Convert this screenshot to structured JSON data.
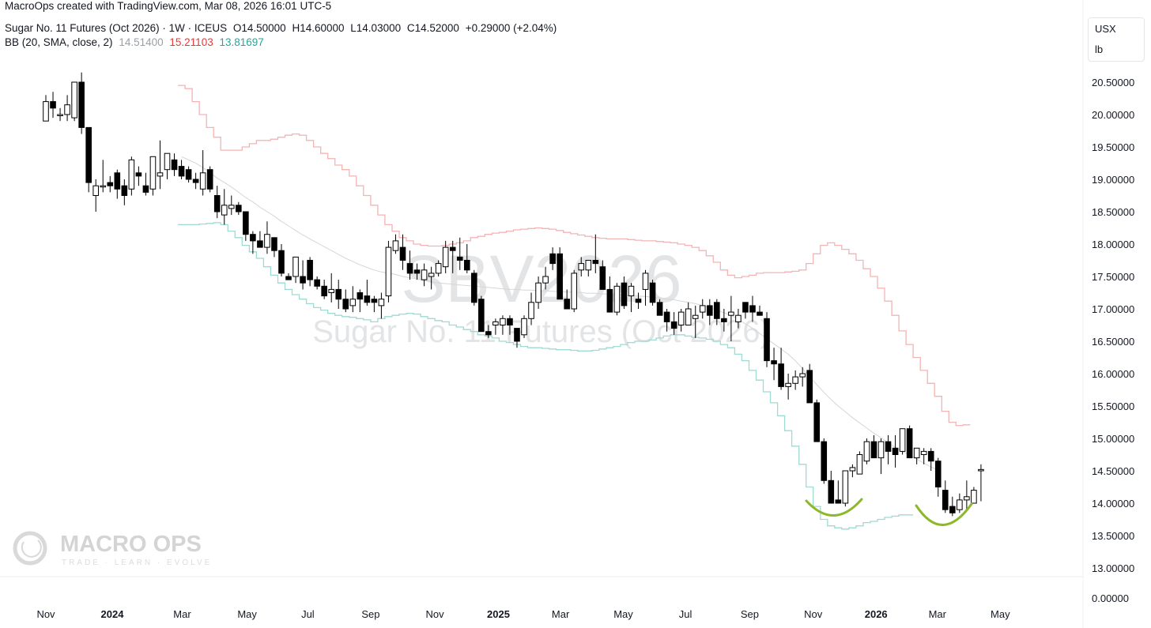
{
  "header": {
    "created_by": "MacroOps created with TradingView.com, Mar 08, 2026 16:01 UTC-5",
    "symbol_title": "Sugar No. 11 Futures (Oct 2026) · 1W · ICEUS",
    "ohlc": {
      "open": "O14.50000",
      "high": "H14.60000",
      "low": "L14.03000",
      "close": "C14.52000",
      "change": "+0.29000 (+2.04%)"
    },
    "bb_label": "BB (20, SMA, close, 2)",
    "bb_values": {
      "basis": "14.51400",
      "upper": "15.21103",
      "lower": "13.81697"
    }
  },
  "unit_box": {
    "currency": "USX",
    "unit": "lb"
  },
  "watermark": {
    "symbol": "SBV2026",
    "description": "Sugar No. 11 Futures (Oct 2026)"
  },
  "logo": {
    "name": "MACRO OPS",
    "tagline": "TRADE · LEARN · EVOLVE"
  },
  "colors": {
    "up_fill": "#ffffff",
    "down_fill": "#000000",
    "bb_upper": "#f4b4b4",
    "bb_basis": "#d6d6d6",
    "bb_lower": "#9fdad4",
    "pattern": "#8cb829",
    "text": "#131722"
  },
  "chart_data": {
    "type": "candlestick",
    "timeframe": "1W",
    "y_axis": {
      "labels": [
        "20.50000",
        "20.00000",
        "19.50000",
        "19.00000",
        "18.50000",
        "18.00000",
        "17.50000",
        "17.00000",
        "16.50000",
        "16.00000",
        "15.50000",
        "15.00000",
        "14.50000",
        "14.00000",
        "13.50000",
        "13.00000"
      ],
      "ylim": [
        13.0,
        20.5
      ],
      "volume_label": "0.00000"
    },
    "x_axis": {
      "ticks": [
        {
          "label": "Nov",
          "bold": false,
          "week": 0
        },
        {
          "label": "2024",
          "bold": true,
          "week": 9.3
        },
        {
          "label": "Mar",
          "bold": false,
          "week": 19.1
        },
        {
          "label": "May",
          "bold": false,
          "week": 28.2
        },
        {
          "label": "Jul",
          "bold": false,
          "week": 36.7
        },
        {
          "label": "Sep",
          "bold": false,
          "week": 45.5
        },
        {
          "label": "Nov",
          "bold": false,
          "week": 54.5
        },
        {
          "label": "2025",
          "bold": true,
          "week": 63.4
        },
        {
          "label": "Mar",
          "bold": false,
          "week": 72.1
        },
        {
          "label": "May",
          "bold": false,
          "week": 80.9
        },
        {
          "label": "Jul",
          "bold": false,
          "week": 89.6
        },
        {
          "label": "Sep",
          "bold": false,
          "week": 98.6
        },
        {
          "label": "Nov",
          "bold": false,
          "week": 107.5
        },
        {
          "label": "2026",
          "bold": true,
          "week": 116.3
        },
        {
          "label": "Mar",
          "bold": false,
          "week": 124.9
        },
        {
          "label": "May",
          "bold": false,
          "week": 133.7
        }
      ]
    },
    "ohlc": [
      [
        19.9,
        20.3,
        19.9,
        20.2
      ],
      [
        20.2,
        20.35,
        19.95,
        20.1
      ],
      [
        20.0,
        20.1,
        19.9,
        20.0
      ],
      [
        20.0,
        20.3,
        19.9,
        20.15
      ],
      [
        19.95,
        20.5,
        19.9,
        20.5
      ],
      [
        20.5,
        20.65,
        19.7,
        19.8
      ],
      [
        19.8,
        19.8,
        18.8,
        18.95
      ],
      [
        18.75,
        19.0,
        18.5,
        18.9
      ],
      [
        18.9,
        19.3,
        18.8,
        18.9
      ],
      [
        18.95,
        19.05,
        18.8,
        18.9
      ],
      [
        19.1,
        19.15,
        18.7,
        18.85
      ],
      [
        18.9,
        19.0,
        18.6,
        18.75
      ],
      [
        18.85,
        19.35,
        18.75,
        19.3
      ],
      [
        19.1,
        19.2,
        18.9,
        19.05
      ],
      [
        18.9,
        19.1,
        18.75,
        18.8
      ],
      [
        18.85,
        19.35,
        18.75,
        19.35
      ],
      [
        19.05,
        19.6,
        18.85,
        19.1
      ],
      [
        19.15,
        19.4,
        19.0,
        19.4
      ],
      [
        19.3,
        19.4,
        19.05,
        19.15
      ],
      [
        19.2,
        19.3,
        19.0,
        19.05
      ],
      [
        19.15,
        19.2,
        18.95,
        19.0
      ],
      [
        19.0,
        19.1,
        18.85,
        18.95
      ],
      [
        18.85,
        19.45,
        18.75,
        19.1
      ],
      [
        19.15,
        19.2,
        18.8,
        18.85
      ],
      [
        18.75,
        18.9,
        18.4,
        18.5
      ],
      [
        18.45,
        18.85,
        18.3,
        18.6
      ],
      [
        18.55,
        18.75,
        18.45,
        18.6
      ],
      [
        18.6,
        18.65,
        18.45,
        18.5
      ],
      [
        18.5,
        18.5,
        18.05,
        18.15
      ],
      [
        18.15,
        18.2,
        17.85,
        18.05
      ],
      [
        18.05,
        18.2,
        17.95,
        17.95
      ],
      [
        17.95,
        18.35,
        17.85,
        18.15
      ],
      [
        18.1,
        18.1,
        17.8,
        17.9
      ],
      [
        17.9,
        18.0,
        17.5,
        17.55
      ],
      [
        17.5,
        17.55,
        17.45,
        17.45
      ],
      [
        17.5,
        17.8,
        17.4,
        17.8
      ],
      [
        17.5,
        17.75,
        17.3,
        17.4
      ],
      [
        17.75,
        17.8,
        17.35,
        17.45
      ],
      [
        17.45,
        17.5,
        17.3,
        17.35
      ],
      [
        17.35,
        17.45,
        17.15,
        17.2
      ],
      [
        17.25,
        17.55,
        17.1,
        17.3
      ],
      [
        17.3,
        17.45,
        17.0,
        17.15
      ],
      [
        17.15,
        17.3,
        16.95,
        17.0
      ],
      [
        17.05,
        17.35,
        16.95,
        17.15
      ],
      [
        17.25,
        17.3,
        16.95,
        17.15
      ],
      [
        17.2,
        17.45,
        17.05,
        17.1
      ],
      [
        17.15,
        17.2,
        16.95,
        17.1
      ],
      [
        17.05,
        17.25,
        16.85,
        17.15
      ],
      [
        17.2,
        18.05,
        17.1,
        17.95
      ],
      [
        17.9,
        18.15,
        17.85,
        18.05
      ],
      [
        17.95,
        18.15,
        17.6,
        17.75
      ],
      [
        17.7,
        17.9,
        17.45,
        17.55
      ],
      [
        17.6,
        17.7,
        17.45,
        17.55
      ],
      [
        17.45,
        17.7,
        17.35,
        17.6
      ],
      [
        17.5,
        17.65,
        17.3,
        17.55
      ],
      [
        17.55,
        17.75,
        17.5,
        17.7
      ],
      [
        17.65,
        18.05,
        17.55,
        17.95
      ],
      [
        17.95,
        18.05,
        17.55,
        17.9
      ],
      [
        17.8,
        18.1,
        17.6,
        17.75
      ],
      [
        17.75,
        18.0,
        17.55,
        17.6
      ],
      [
        17.55,
        17.6,
        17.05,
        17.1
      ],
      [
        17.15,
        17.2,
        16.65,
        16.65
      ],
      [
        16.65,
        16.75,
        16.55,
        16.6
      ],
      [
        16.75,
        16.85,
        16.6,
        16.8
      ],
      [
        16.75,
        16.9,
        16.6,
        16.85
      ],
      [
        16.85,
        16.9,
        16.6,
        16.75
      ],
      [
        16.7,
        16.7,
        16.4,
        16.5
      ],
      [
        16.6,
        16.9,
        16.55,
        16.85
      ],
      [
        16.85,
        17.25,
        16.75,
        17.1
      ],
      [
        17.1,
        17.5,
        17.0,
        17.4
      ],
      [
        17.4,
        17.65,
        17.3,
        17.5
      ],
      [
        17.85,
        17.95,
        17.6,
        17.7
      ],
      [
        17.85,
        17.95,
        17.15,
        17.15
      ],
      [
        17.15,
        17.3,
        17.0,
        17.0
      ],
      [
        17.0,
        17.6,
        16.95,
        17.55
      ],
      [
        17.6,
        17.8,
        17.5,
        17.7
      ],
      [
        17.6,
        17.75,
        17.5,
        17.75
      ],
      [
        17.75,
        18.15,
        17.55,
        17.7
      ],
      [
        17.65,
        17.75,
        17.3,
        17.3
      ],
      [
        17.3,
        17.5,
        16.95,
        16.95
      ],
      [
        16.95,
        17.4,
        16.9,
        17.35
      ],
      [
        17.4,
        17.5,
        17.0,
        17.05
      ],
      [
        17.2,
        17.4,
        16.95,
        17.35
      ],
      [
        17.15,
        17.25,
        17.0,
        17.1
      ],
      [
        17.3,
        17.6,
        17.05,
        17.55
      ],
      [
        17.4,
        17.45,
        17.05,
        17.1
      ],
      [
        17.1,
        17.15,
        16.95,
        16.9
      ],
      [
        16.95,
        17.0,
        16.65,
        16.8
      ],
      [
        16.8,
        16.95,
        16.6,
        16.7
      ],
      [
        16.75,
        17.0,
        16.65,
        16.95
      ],
      [
        16.75,
        17.1,
        16.75,
        17.0
      ],
      [
        16.85,
        17.05,
        16.55,
        16.9
      ],
      [
        16.95,
        17.15,
        16.85,
        17.05
      ],
      [
        17.05,
        17.15,
        16.75,
        16.9
      ],
      [
        17.1,
        17.15,
        16.75,
        16.85
      ],
      [
        16.85,
        17.0,
        16.65,
        16.8
      ],
      [
        16.9,
        17.2,
        16.5,
        16.95
      ],
      [
        16.8,
        17.0,
        16.7,
        16.9
      ],
      [
        17.1,
        17.1,
        16.85,
        16.95
      ],
      [
        17.05,
        17.2,
        16.8,
        16.95
      ],
      [
        16.95,
        17.05,
        16.9,
        16.9
      ],
      [
        16.85,
        16.95,
        16.1,
        16.2
      ],
      [
        16.2,
        16.4,
        15.9,
        16.15
      ],
      [
        16.15,
        16.4,
        15.75,
        15.8
      ],
      [
        15.8,
        16.0,
        15.6,
        15.85
      ],
      [
        15.85,
        16.05,
        15.75,
        15.95
      ],
      [
        15.95,
        16.1,
        15.8,
        16.0
      ],
      [
        16.05,
        16.15,
        15.6,
        15.55
      ],
      [
        15.55,
        15.6,
        14.95,
        14.95
      ],
      [
        14.95,
        15.0,
        14.3,
        14.35
      ],
      [
        14.35,
        14.5,
        14.0,
        14.0
      ],
      [
        14.05,
        14.35,
        14.0,
        14.0
      ],
      [
        14.0,
        14.5,
        13.95,
        14.5
      ],
      [
        14.5,
        14.6,
        14.4,
        14.55
      ],
      [
        14.45,
        14.8,
        14.45,
        14.75
      ],
      [
        14.65,
        15.0,
        14.6,
        14.95
      ],
      [
        14.95,
        15.05,
        14.7,
        14.7
      ],
      [
        14.7,
        15.0,
        14.45,
        14.95
      ],
      [
        14.95,
        15.05,
        14.6,
        14.8
      ],
      [
        14.85,
        15.05,
        14.55,
        14.75
      ],
      [
        14.8,
        15.15,
        14.75,
        15.15
      ],
      [
        15.15,
        15.2,
        14.7,
        14.7
      ],
      [
        14.7,
        14.85,
        14.6,
        14.85
      ],
      [
        14.75,
        14.85,
        14.6,
        14.8
      ],
      [
        14.8,
        14.85,
        14.5,
        14.65
      ],
      [
        14.65,
        14.7,
        14.1,
        14.25
      ],
      [
        14.2,
        14.35,
        13.85,
        13.9
      ],
      [
        13.95,
        14.1,
        13.8,
        13.85
      ],
      [
        13.9,
        14.15,
        13.85,
        14.05
      ],
      [
        14.05,
        14.35,
        13.9,
        14.1
      ],
      [
        14.0,
        14.25,
        14.0,
        14.2
      ],
      [
        14.5,
        14.6,
        14.03,
        14.52
      ]
    ],
    "bb_upper": [
      null,
      null,
      null,
      null,
      null,
      null,
      null,
      null,
      null,
      null,
      null,
      null,
      null,
      null,
      null,
      null,
      null,
      null,
      null,
      20.45,
      20.4,
      20.2,
      20.0,
      19.8,
      19.65,
      19.45,
      19.45,
      19.45,
      19.5,
      19.55,
      19.6,
      19.6,
      19.62,
      19.65,
      19.68,
      19.7,
      19.68,
      19.6,
      19.5,
      19.4,
      19.32,
      19.22,
      19.15,
      19.05,
      18.9,
      18.75,
      18.6,
      18.45,
      18.3,
      18.2,
      18.1,
      18.05,
      18.0,
      17.98,
      17.97,
      17.97,
      17.98,
      18.0,
      18.02,
      18.05,
      18.1,
      18.12,
      18.15,
      18.17,
      18.18,
      18.2,
      18.22,
      18.23,
      18.24,
      18.25,
      18.24,
      18.23,
      18.21,
      18.18,
      18.16,
      18.14,
      18.12,
      18.1,
      18.09,
      18.08,
      18.08,
      18.08,
      18.07,
      18.06,
      18.05,
      18.05,
      18.04,
      18.03,
      18.02,
      18.0,
      17.98,
      17.95,
      17.9,
      17.82,
      17.72,
      17.6,
      17.52,
      17.48,
      17.5,
      17.52,
      17.55,
      17.56,
      17.56,
      17.56,
      17.57,
      17.58,
      17.6,
      17.7,
      17.85,
      17.98,
      18.02,
      17.98,
      17.92,
      17.85,
      17.75,
      17.62,
      17.5,
      17.32,
      17.12,
      16.9,
      16.66,
      16.45,
      16.25,
      16.05,
      15.85,
      15.65,
      15.42,
      15.25,
      15.2,
      15.21
    ],
    "bb_basis": [
      null,
      null,
      null,
      null,
      null,
      null,
      null,
      null,
      null,
      null,
      null,
      null,
      null,
      null,
      null,
      null,
      null,
      null,
      null,
      19.35,
      19.3,
      19.25,
      19.18,
      19.1,
      19.02,
      18.95,
      18.88,
      18.8,
      18.72,
      18.65,
      18.57,
      18.5,
      18.43,
      18.35,
      18.28,
      18.21,
      18.14,
      18.08,
      18.02,
      17.96,
      17.9,
      17.84,
      17.78,
      17.73,
      17.68,
      17.64,
      17.6,
      17.57,
      17.55,
      17.53,
      17.5,
      17.48,
      17.46,
      17.44,
      17.42,
      17.4,
      17.39,
      17.38,
      17.37,
      17.36,
      17.35,
      17.34,
      17.33,
      17.32,
      17.31,
      17.3,
      17.3,
      17.29,
      17.29,
      17.28,
      17.28,
      17.27,
      17.27,
      17.26,
      17.26,
      17.25,
      17.24,
      17.24,
      17.23,
      17.23,
      17.22,
      17.21,
      17.2,
      17.2,
      17.19,
      17.18,
      17.17,
      17.15,
      17.14,
      17.12,
      17.1,
      17.08,
      17.05,
      17.02,
      16.98,
      16.94,
      16.9,
      16.84,
      16.77,
      16.7,
      16.62,
      16.54,
      16.46,
      16.38,
      16.3,
      16.2,
      16.08,
      15.95,
      15.83,
      15.71,
      15.6,
      15.5,
      15.41,
      15.32,
      15.24,
      15.16,
      15.08,
      15.01,
      14.93,
      14.86,
      14.8,
      14.74,
      14.68,
      14.62,
      14.56,
      14.51
    ],
    "bb_lower": [
      null,
      null,
      null,
      null,
      null,
      null,
      null,
      null,
      null,
      null,
      null,
      null,
      null,
      null,
      null,
      null,
      null,
      null,
      null,
      18.3,
      18.3,
      18.3,
      18.31,
      18.32,
      18.33,
      18.3,
      18.2,
      18.1,
      17.98,
      17.88,
      17.78,
      17.65,
      17.52,
      17.4,
      17.3,
      17.22,
      17.15,
      17.08,
      17.02,
      16.98,
      16.93,
      16.9,
      16.88,
      16.87,
      16.85,
      16.83,
      16.8,
      16.85,
      16.88,
      16.9,
      16.92,
      16.93,
      16.92,
      16.88,
      16.85,
      16.82,
      16.8,
      16.75,
      16.72,
      16.68,
      16.65,
      16.6,
      16.58,
      16.55,
      16.5,
      16.48,
      16.45,
      16.42,
      16.4,
      16.4,
      16.39,
      16.38,
      16.37,
      16.37,
      16.36,
      16.35,
      16.35,
      16.36,
      16.38,
      16.4,
      16.42,
      16.45,
      16.48,
      16.5,
      16.5,
      16.52,
      16.55,
      16.58,
      16.6,
      16.6,
      16.58,
      16.56,
      16.55,
      16.53,
      16.5,
      16.45,
      16.4,
      16.3,
      16.2,
      16.05,
      15.9,
      15.72,
      15.55,
      15.35,
      15.12,
      14.88,
      14.6,
      14.25,
      13.95,
      13.75,
      13.65,
      13.62,
      13.6,
      13.62,
      13.65,
      13.7,
      13.72,
      13.75,
      13.78,
      13.8,
      13.82,
      13.82
    ]
  }
}
